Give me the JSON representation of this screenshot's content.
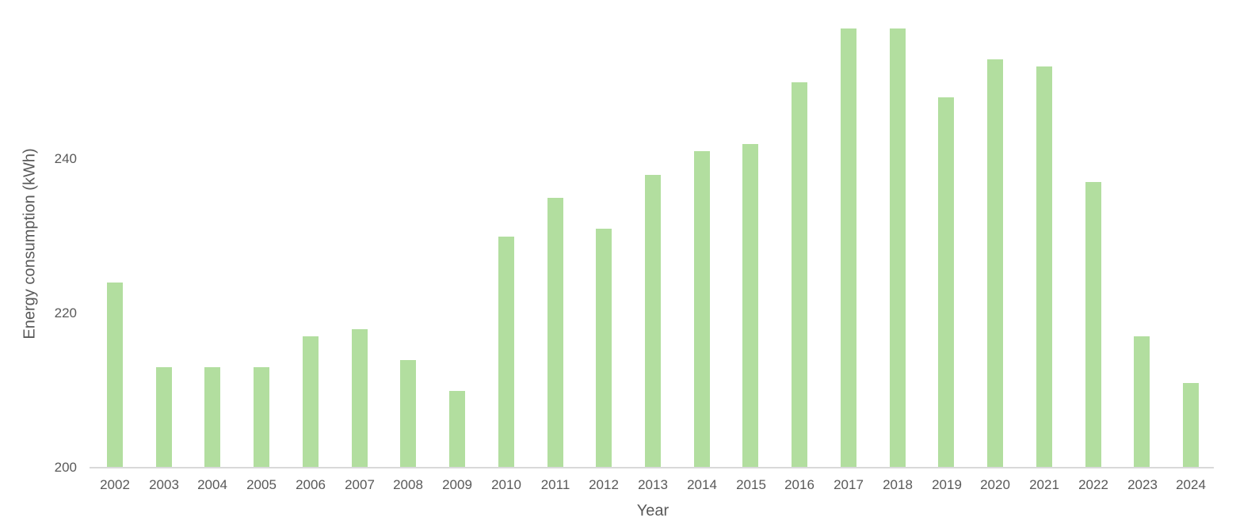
{
  "chart_data": {
    "type": "bar",
    "xlabel": "Year",
    "ylabel": "Energy consumption (kWh)",
    "categories": [
      "2002",
      "2003",
      "2004",
      "2005",
      "2006",
      "2007",
      "2008",
      "2009",
      "2010",
      "2011",
      "2012",
      "2013",
      "2014",
      "2015",
      "2016",
      "2017",
      "2018",
      "2019",
      "2020",
      "2021",
      "2022",
      "2023",
      "2024"
    ],
    "values": [
      224,
      213,
      213,
      213,
      217,
      218,
      214,
      210,
      230,
      235,
      231,
      238,
      241,
      242,
      250,
      257,
      257,
      248,
      253,
      252,
      237,
      217,
      211
    ],
    "yticks": [
      200,
      220,
      240
    ],
    "ylim": [
      200,
      260
    ],
    "grid": false,
    "legend": false,
    "colors": {
      "bar_fill": "#B2DE9F",
      "axis_line": "#D9D9D9",
      "text": "#595959",
      "background": "#FFFFFF"
    }
  }
}
